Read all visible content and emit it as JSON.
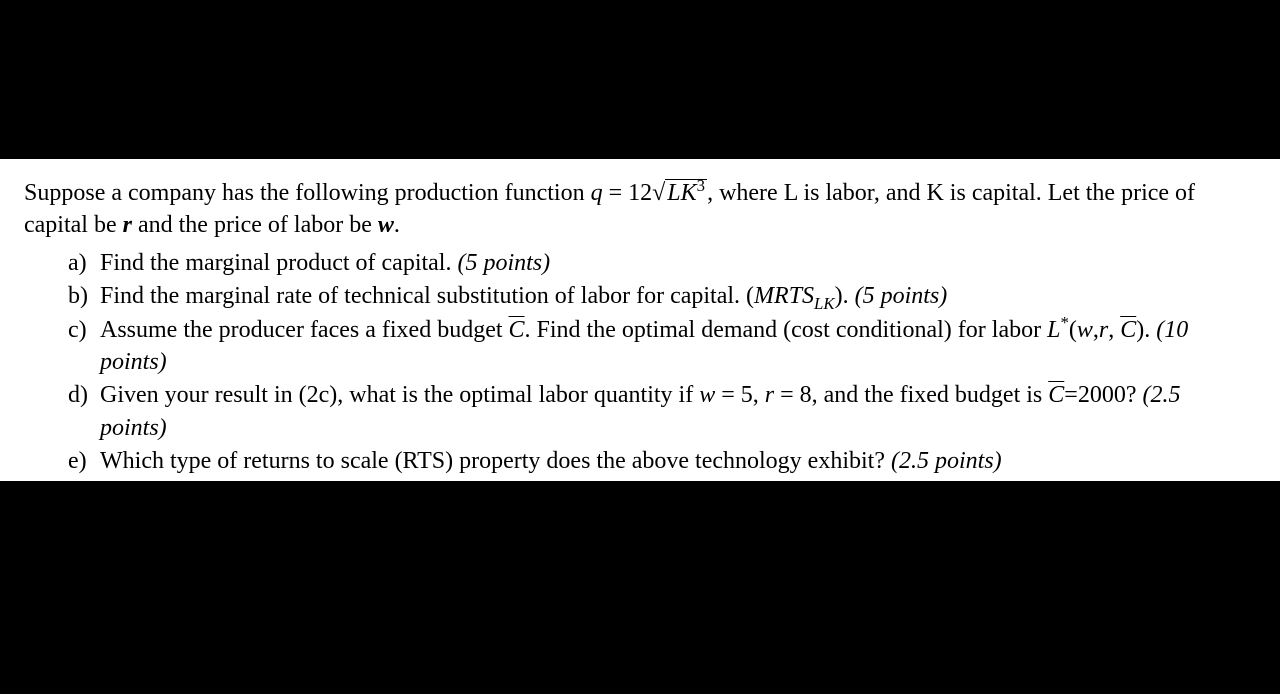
{
  "document": {
    "background_color": "#000000",
    "page_color": "#ffffff",
    "text_color": "#000000",
    "font_size": 24,
    "intro": {
      "prefix": "Suppose a company has the following production function ",
      "equation_lhs": "q",
      "equals": " = ",
      "equation_coef": "12",
      "sqrt_content_var1": "L",
      "sqrt_content_var2": "K",
      "sqrt_exponent": "3",
      "suffix1": ", where L is labor, and K is capital. Let the price of capital be ",
      "var_r": "r",
      "suffix2": " and the price of labor be ",
      "var_w": "w",
      "suffix3": "."
    },
    "items": [
      {
        "label": "a)",
        "text": "Find the marginal product of capital. ",
        "points": "(5 points)"
      },
      {
        "label": "b)",
        "text_prefix": "Find the marginal rate of technical substitution of labor for capital. (",
        "mrts": "MRTS",
        "mrts_sub": "LK",
        "text_suffix": "). ",
        "points": "(5 points)"
      },
      {
        "label": "c)",
        "text_prefix": "Assume the producer faces a fixed budget ",
        "cbar": "C",
        "text_mid": ". Find the optimal demand (cost conditional) for labor ",
        "lstar": "L",
        "lstar_sup": "*",
        "lparen": "(",
        "arg_w": "w",
        "comma1": ",",
        "arg_r": "r",
        "comma2": ", ",
        "arg_c": "C",
        "rparen": ")",
        "text_suffix": ". ",
        "points": "(10 points)"
      },
      {
        "label": "d)",
        "text_prefix": "Given your result in (2c), what is the optimal labor quantity if ",
        "var_w": "w",
        "eq_w": " = 5, ",
        "var_r": "r",
        "eq_r": " = 8, and the fixed budget is ",
        "cbar": "C",
        "eq_c": "=2000? ",
        "points": "(2.5 points)"
      },
      {
        "label": "e)",
        "text": "Which type of returns to scale (RTS) property does the above technology exhibit? ",
        "points": "(2.5 points)"
      }
    ]
  }
}
